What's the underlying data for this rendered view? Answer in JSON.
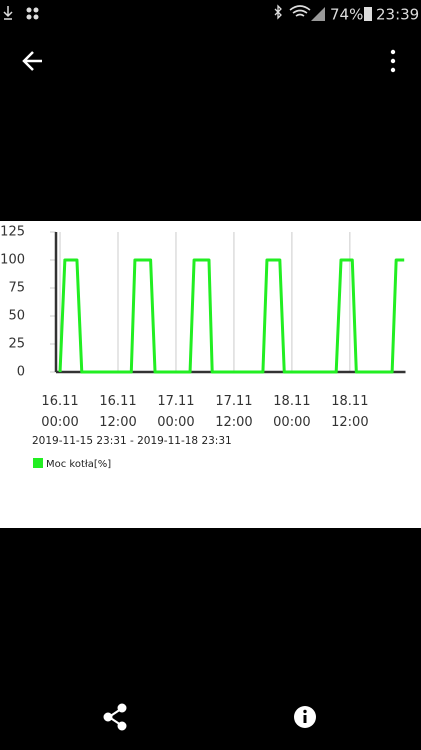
{
  "status_bar": {
    "battery": "74%",
    "time": "23:39"
  },
  "chart_data": {
    "type": "line",
    "subtitle": "2019-11-15 23:31 - 2019-11-18 23:31",
    "x": [
      "16.11 00:00",
      "16.11 01:00",
      "16.11 03:30",
      "16.11 04:30",
      "16.11 14:45",
      "16.11 15:30",
      "16.11 18:45",
      "16.11 19:40",
      "17.11 02:55",
      "17.11 03:45",
      "17.11 06:50",
      "17.11 07:30",
      "17.11 18:00",
      "17.11 18:50",
      "17.11 21:30",
      "17.11 22:25",
      "18.11 09:10",
      "18.11 10:10",
      "18.11 12:30",
      "18.11 13:20",
      "18.11 20:45",
      "18.11 21:35",
      "18.11 23:15"
    ],
    "series": [
      {
        "name": "Moc kotła[%]",
        "color": "#22ee22",
        "values": [
          0,
          100,
          100,
          0,
          0,
          100,
          100,
          0,
          0,
          100,
          100,
          0,
          0,
          100,
          100,
          0,
          0,
          100,
          100,
          0,
          0,
          100,
          100
        ]
      }
    ],
    "xlim": [
      "15.11 23:31",
      "18.11 23:31"
    ],
    "xticks": [
      "16.11 00:00",
      "16.11 12:00",
      "17.11 00:00",
      "17.11 12:00",
      "18.11 00:00",
      "18.11 12:00"
    ],
    "ylim": [
      0,
      125
    ],
    "yticks": [
      0,
      25,
      50,
      75,
      100,
      125
    ],
    "grid": true
  }
}
